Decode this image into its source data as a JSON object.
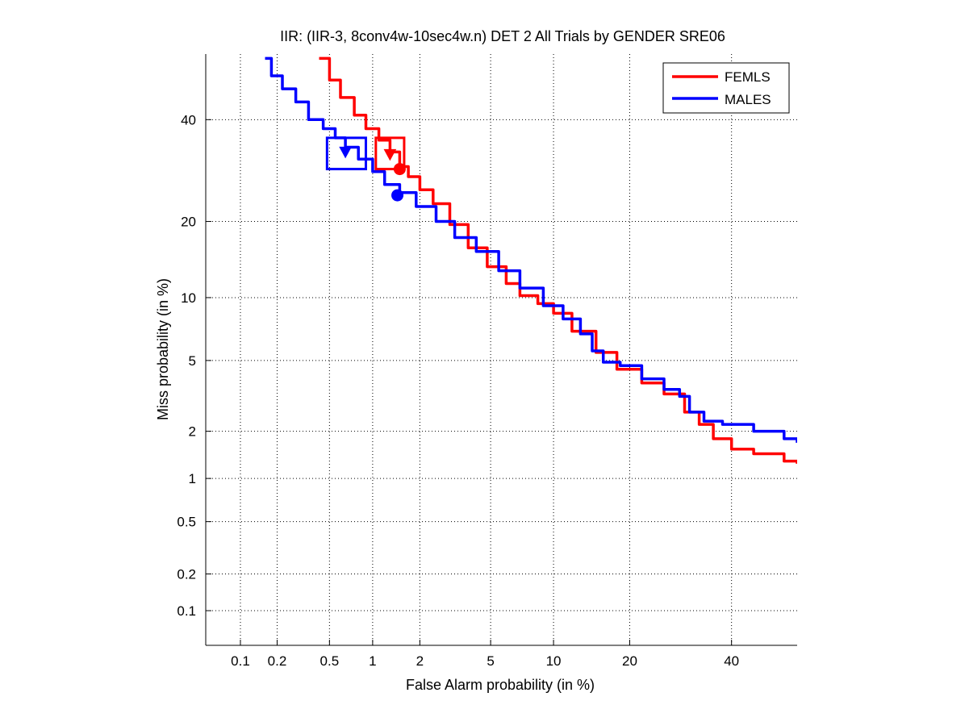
{
  "chart_data": {
    "type": "line",
    "title": "IIR: (IIR-3, 8conv4w-10sec4w.n) DET 2 All Trials by GENDER SRE06",
    "xlabel": "False Alarm probability (in %)",
    "ylabel": "Miss probability (in %)",
    "x_scale": "probit",
    "y_scale": "probit",
    "xlim": [
      0.05,
      55
    ],
    "ylim": [
      0.05,
      55
    ],
    "x_ticks": [
      0.1,
      0.2,
      0.5,
      1,
      2,
      5,
      10,
      20,
      40
    ],
    "x_tick_labels": [
      "0.1",
      "0.2",
      "0.5",
      "1",
      "2",
      "5",
      "10",
      "20",
      "40"
    ],
    "y_ticks": [
      0.1,
      0.2,
      0.5,
      1,
      2,
      5,
      10,
      20,
      40
    ],
    "y_tick_labels": [
      "0.1",
      "0.2",
      "0.5",
      "1",
      "2",
      "5",
      "10",
      "20",
      "40"
    ],
    "grid": true,
    "legend_position": "top-right",
    "series": [
      {
        "name": "FEMLS",
        "color": "#ff0000",
        "x": [
          0.42,
          0.5,
          0.6,
          0.75,
          0.9,
          1.1,
          1.3,
          1.5,
          1.7,
          2.0,
          2.4,
          3.0,
          3.8,
          4.8,
          6.0,
          7.0,
          8.5,
          10,
          12,
          15,
          18,
          22,
          26,
          30,
          33,
          36,
          40,
          45,
          52,
          55
        ],
        "y": [
          54,
          49,
          45,
          41,
          38,
          35.5,
          33,
          30,
          28,
          25.5,
          23,
          19.5,
          16,
          13.5,
          11.5,
          10.2,
          9.4,
          8.5,
          7.0,
          5.5,
          4.5,
          3.8,
          3.3,
          2.6,
          2.2,
          1.8,
          1.55,
          1.45,
          1.3,
          1.25
        ],
        "markers": {
          "act_dcf": {
            "x": 1.3,
            "y": 32.5
          },
          "min_dcf": {
            "x": 1.5,
            "y": 29.5
          }
        }
      },
      {
        "name": "MALES",
        "color": "#0000ff",
        "x": [
          0.16,
          0.18,
          0.22,
          0.28,
          0.35,
          0.45,
          0.55,
          0.65,
          0.8,
          1.0,
          1.2,
          1.5,
          1.9,
          2.5,
          3.2,
          4.2,
          5.5,
          7.0,
          9.0,
          11,
          13,
          14.5,
          16,
          18.5,
          22,
          26,
          29,
          31,
          34,
          38,
          45,
          52,
          55
        ],
        "y": [
          54,
          50,
          47,
          44,
          40,
          38,
          36,
          34,
          31.5,
          29,
          26.5,
          25,
          22.5,
          20,
          17.5,
          15.5,
          13,
          11,
          9.2,
          8.0,
          6.8,
          5.6,
          4.9,
          4.7,
          4.0,
          3.5,
          3.2,
          2.6,
          2.3,
          2.2,
          2.0,
          1.8,
          1.7
        ],
        "markers": {
          "act_dcf": {
            "x": 0.65,
            "y": 33
          },
          "min_dcf": {
            "x": 1.45,
            "y": 24.5
          }
        }
      }
    ],
    "act_dcf_boxes": [
      {
        "series": "FEMLS",
        "x_range": [
          1.05,
          1.6
        ],
        "y_range": [
          29.5,
          36
        ]
      },
      {
        "series": "MALES",
        "x_range": [
          0.48,
          0.9
        ],
        "y_range": [
          29.5,
          36
        ]
      }
    ]
  }
}
